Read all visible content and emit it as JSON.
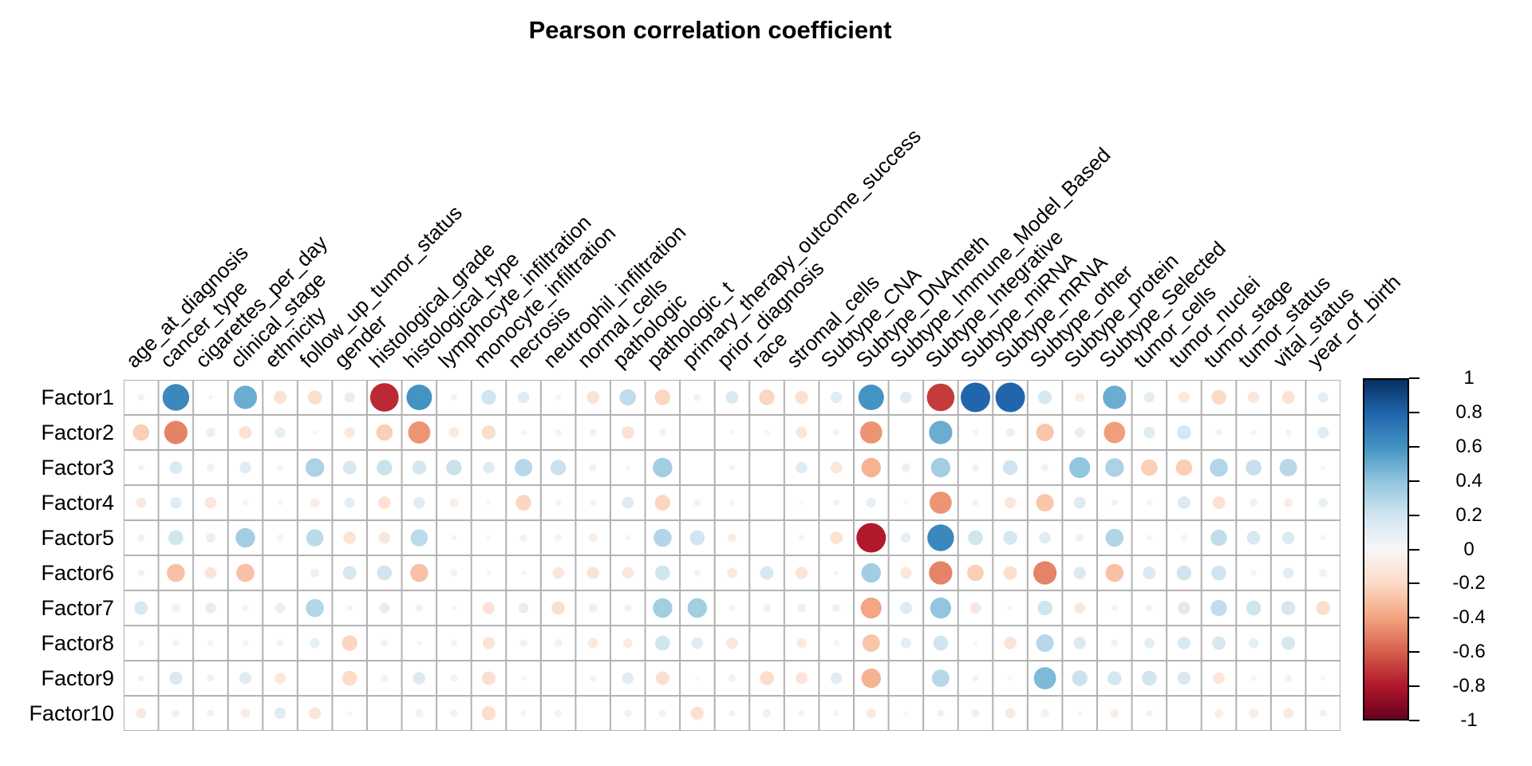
{
  "title": "Pearson correlation coefficient",
  "chart_data": {
    "type": "heatmap",
    "subtype": "correlation-bubble-matrix",
    "title": "Pearson correlation coefficient",
    "grid": true,
    "value_range": [
      -1,
      1
    ],
    "rows": [
      "Factor1",
      "Factor2",
      "Factor3",
      "Factor4",
      "Factor5",
      "Factor6",
      "Factor7",
      "Factor8",
      "Factor9",
      "Factor10"
    ],
    "columns": [
      "age_at_diagnosis",
      "cancer_type",
      "cigarettes_per_day",
      "clinical_stage",
      "ethnicity",
      "follow_up_tumor_status",
      "gender",
      "histological_grade",
      "histological_type",
      "lymphocyte_infiltration",
      "monocyte_infiltration",
      "necrosis",
      "neutrophil_infiltration",
      "normal_cells",
      "pathologic",
      "pathologic_t",
      "primary_therapy_outcome_success",
      "prior_diagnosis",
      "race",
      "stromal_cells",
      "Subtype_CNA",
      "Subtype_DNAmeth",
      "Subtype_Immune_Model_Based",
      "Subtype_Integrative",
      "Subtype_miRNA",
      "Subtype_mRNA",
      "Subtype_other",
      "Subtype_protein",
      "Subtype_Selected",
      "tumor_cells",
      "tumor_nuclei",
      "tumor_stage",
      "tumor_status",
      "vital_status",
      "year_of_birth"
    ],
    "values": [
      [
        0.04,
        0.65,
        0.02,
        0.5,
        -0.15,
        -0.18,
        0.1,
        -0.75,
        0.6,
        -0.04,
        0.2,
        0.12,
        0.03,
        -0.15,
        0.25,
        -0.22,
        -0.05,
        0.15,
        -0.22,
        -0.16,
        0.12,
        0.6,
        0.12,
        -0.7,
        0.8,
        0.8,
        0.17,
        -0.08,
        0.5,
        0.1,
        -0.11,
        -0.2,
        -0.12,
        -0.15,
        0.1
      ],
      [
        -0.25,
        -0.5,
        -0.08,
        -0.15,
        0.1,
        -0.02,
        -0.1,
        -0.25,
        -0.45,
        -0.1,
        -0.18,
        -0.03,
        -0.04,
        -0.05,
        -0.15,
        0.05,
        0.0,
        -0.02,
        -0.03,
        -0.12,
        0.04,
        -0.45,
        0.0,
        0.5,
        -0.03,
        0.07,
        -0.28,
        0.09,
        -0.42,
        0.12,
        0.18,
        0.04,
        0.03,
        -0.04,
        0.12
      ],
      [
        0.03,
        0.15,
        -0.06,
        0.12,
        0.03,
        0.32,
        0.17,
        0.22,
        0.18,
        0.22,
        0.12,
        0.28,
        0.22,
        -0.05,
        -0.02,
        0.35,
        0.0,
        -0.03,
        0.0,
        0.12,
        -0.12,
        -0.35,
        0.07,
        0.35,
        -0.05,
        0.2,
        0.05,
        0.4,
        0.32,
        -0.25,
        -0.25,
        0.3,
        0.23,
        0.28,
        -0.02
      ],
      [
        -0.1,
        0.12,
        -0.12,
        0.03,
        -0.03,
        -0.08,
        0.1,
        -0.15,
        0.12,
        -0.07,
        -0.02,
        -0.22,
        0.03,
        0.04,
        0.13,
        -0.22,
        -0.05,
        0.03,
        0.0,
        -0.02,
        -0.04,
        0.09,
        0.02,
        -0.45,
        -0.04,
        -0.12,
        -0.28,
        0.13,
        -0.04,
        0.03,
        0.15,
        -0.15,
        -0.06,
        -0.07,
        0.08
      ],
      [
        0.05,
        0.2,
        0.08,
        0.35,
        -0.04,
        0.27,
        -0.14,
        -0.12,
        0.27,
        0.03,
        0.02,
        0.05,
        -0.04,
        -0.07,
        -0.03,
        0.3,
        0.2,
        -0.07,
        0.0,
        0.03,
        -0.15,
        -0.8,
        0.09,
        0.65,
        0.2,
        0.18,
        0.12,
        0.06,
        0.3,
        -0.03,
        -0.04,
        0.25,
        0.17,
        0.14,
        -0.03
      ],
      [
        0.04,
        -0.3,
        -0.13,
        -0.3,
        0.0,
        0.07,
        0.17,
        0.2,
        -0.3,
        0.05,
        0.02,
        -0.02,
        -0.12,
        -0.14,
        -0.12,
        0.2,
        0.04,
        -0.1,
        0.17,
        -0.14,
        0.02,
        0.35,
        -0.12,
        -0.5,
        -0.25,
        -0.17,
        -0.5,
        0.14,
        -0.3,
        0.15,
        0.2,
        0.2,
        0.03,
        0.11,
        -0.06
      ],
      [
        0.17,
        -0.07,
        0.1,
        -0.03,
        0.09,
        0.3,
        0.03,
        0.1,
        -0.05,
        0.02,
        -0.14,
        0.1,
        -0.17,
        -0.07,
        -0.05,
        0.35,
        0.35,
        -0.03,
        0.06,
        -0.07,
        -0.06,
        -0.4,
        0.13,
        0.4,
        -0.11,
        0.02,
        0.2,
        -0.11,
        -0.03,
        0.05,
        0.14,
        0.25,
        0.2,
        0.18,
        -0.18
      ],
      [
        -0.03,
        -0.04,
        -0.03,
        -0.03,
        0.04,
        0.09,
        -0.22,
        0.05,
        0.02,
        -0.04,
        -0.14,
        0.05,
        -0.06,
        -0.1,
        -0.08,
        0.2,
        0.12,
        -0.12,
        0.0,
        -0.09,
        -0.03,
        -0.28,
        0.1,
        0.2,
        -0.02,
        -0.14,
        0.28,
        0.14,
        -0.05,
        0.1,
        0.15,
        0.17,
        0.09,
        0.17,
        0.0
      ],
      [
        0.04,
        0.16,
        -0.05,
        0.13,
        -0.11,
        0.0,
        -0.2,
        -0.05,
        0.14,
        -0.05,
        -0.17,
        -0.02,
        0.0,
        -0.04,
        0.12,
        -0.17,
        -0.02,
        0.05,
        -0.18,
        -0.13,
        0.12,
        -0.35,
        0.0,
        0.28,
        0.04,
        0.02,
        0.45,
        0.22,
        0.18,
        0.2,
        0.16,
        -0.12,
        -0.03,
        -0.05,
        0.02
      ],
      [
        -0.1,
        -0.06,
        -0.05,
        -0.08,
        0.12,
        -0.13,
        -0.02,
        0.0,
        -0.06,
        0.05,
        -0.18,
        -0.03,
        0.05,
        0.0,
        -0.05,
        -0.05,
        -0.16,
        -0.04,
        0.06,
        -0.04,
        0.03,
        -0.09,
        0.02,
        -0.05,
        0.06,
        -0.1,
        0.06,
        0.02,
        -0.07,
        0.04,
        0.0,
        -0.07,
        -0.08,
        -0.1,
        0.05
      ]
    ],
    "legend": {
      "position": "right",
      "tick_labels": [
        "1",
        "0.8",
        "0.6",
        "0.4",
        "0.2",
        "0",
        "-0.2",
        "-0.4",
        "-0.6",
        "-0.8",
        "-1"
      ]
    },
    "colors": {
      "palette_name": "RdBu",
      "stop_values": [
        1,
        0.8,
        0.6,
        0.4,
        0.2,
        0,
        -0.2,
        -0.4,
        -0.6,
        -0.8,
        -1
      ],
      "stop_colors": [
        "#053061",
        "#2166ac",
        "#4393c3",
        "#92c5de",
        "#d1e5f0",
        "#f7f7f7",
        "#fddbc7",
        "#f4a582",
        "#d6604d",
        "#b2182b",
        "#67001f"
      ],
      "grid_line": "#b2b2b2",
      "text": "#000000",
      "background": "#ffffff"
    }
  }
}
